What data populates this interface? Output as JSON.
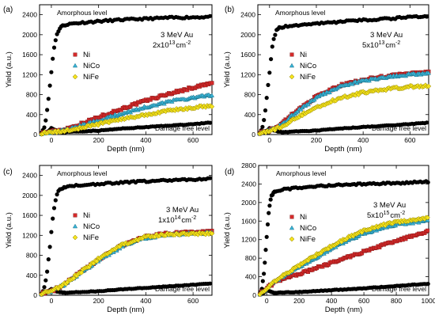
{
  "colors": {
    "ni": "#d42a2a",
    "nico": "#39b6d9",
    "nife": "#f5e31c",
    "ref": "#000000",
    "frame": "#000000"
  },
  "chart_data": [
    {
      "type": "scatter",
      "panel_label": "(a)",
      "beam": "3 MeV Au",
      "fluence_mantissa": "2x10",
      "fluence_exp": "13",
      "fluence_unit": "cm",
      "fluence_unit_exp": "-2",
      "xlabel": "Depth (nm)",
      "ylabel": "Yield (a.u.)",
      "xlim": [
        -50,
        680
      ],
      "ylim": [
        0,
        2600
      ],
      "xticks": [
        0,
        200,
        400,
        600
      ],
      "yticks": [
        0,
        400,
        800,
        1200,
        1600,
        2000,
        2400
      ],
      "annotations": {
        "amorphous": "Amorphous level",
        "damage_free": "Damage free level"
      },
      "amorphous": {
        "x": [
          -40,
          -30,
          -20,
          -10,
          0,
          10,
          20,
          30,
          40,
          60,
          100,
          200,
          300,
          400,
          500,
          600,
          680
        ],
        "y": [
          50,
          150,
          400,
          800,
          1250,
          1700,
          1950,
          2080,
          2160,
          2200,
          2230,
          2270,
          2300,
          2320,
          2340,
          2350,
          2360
        ]
      },
      "damage_free": {
        "x": [
          -40,
          -25,
          -10,
          0,
          20,
          50,
          100,
          200,
          300,
          400,
          500,
          600,
          680
        ],
        "y": [
          20,
          40,
          80,
          130,
          80,
          50,
          60,
          80,
          120,
          150,
          180,
          210,
          240
        ]
      },
      "series": [
        {
          "name": "Ni",
          "x": [
            -40,
            0,
            50,
            100,
            200,
            300,
            400,
            500,
            600,
            680
          ],
          "y": [
            30,
            60,
            100,
            170,
            350,
            520,
            680,
            820,
            940,
            1030
          ]
        },
        {
          "name": "NiCo",
          "x": [
            -40,
            0,
            50,
            100,
            200,
            300,
            400,
            500,
            600,
            680
          ],
          "y": [
            30,
            50,
            80,
            140,
            280,
            420,
            550,
            660,
            740,
            790
          ]
        },
        {
          "name": "NiFe",
          "x": [
            -40,
            0,
            50,
            100,
            200,
            300,
            400,
            500,
            600,
            680
          ],
          "y": [
            30,
            40,
            70,
            110,
            210,
            310,
            400,
            480,
            540,
            580
          ]
        }
      ]
    },
    {
      "type": "scatter",
      "panel_label": "(b)",
      "beam": "3 MeV Au",
      "fluence_mantissa": "5x10",
      "fluence_exp": "13",
      "fluence_unit": "cm",
      "fluence_unit_exp": "-2",
      "xlabel": "Depth (nm)",
      "ylabel": "Yield (a.u.)",
      "xlim": [
        -50,
        680
      ],
      "ylim": [
        0,
        2600
      ],
      "xticks": [
        0,
        200,
        400,
        600
      ],
      "yticks": [
        0,
        400,
        800,
        1200,
        1600,
        2000,
        2400
      ],
      "annotations": {
        "amorphous": "Amorphous level",
        "damage_free": "Damage free level"
      },
      "amorphous": {
        "x": [
          -40,
          -30,
          -20,
          -10,
          0,
          10,
          20,
          30,
          40,
          60,
          100,
          200,
          300,
          400,
          500,
          600,
          680
        ],
        "y": [
          50,
          150,
          400,
          800,
          1250,
          1700,
          1950,
          2080,
          2130,
          2160,
          2180,
          2220,
          2260,
          2290,
          2320,
          2350,
          2370
        ]
      },
      "damage_free": {
        "x": [
          -40,
          -25,
          -10,
          0,
          20,
          50,
          100,
          200,
          300,
          400,
          500,
          600,
          680
        ],
        "y": [
          20,
          40,
          80,
          130,
          80,
          50,
          60,
          80,
          120,
          150,
          180,
          210,
          240
        ]
      },
      "series": [
        {
          "name": "Ni",
          "x": [
            -40,
            0,
            50,
            100,
            200,
            300,
            400,
            500,
            600,
            680
          ],
          "y": [
            40,
            80,
            200,
            420,
            760,
            980,
            1100,
            1170,
            1220,
            1250
          ]
        },
        {
          "name": "NiCo",
          "x": [
            -40,
            0,
            50,
            100,
            200,
            300,
            400,
            500,
            600,
            680
          ],
          "y": [
            40,
            80,
            190,
            400,
            740,
            960,
            1080,
            1150,
            1200,
            1230
          ]
        },
        {
          "name": "NiFe",
          "x": [
            -40,
            0,
            50,
            100,
            200,
            300,
            400,
            500,
            600,
            680
          ],
          "y": [
            40,
            70,
            150,
            300,
            550,
            730,
            840,
            910,
            960,
            980
          ]
        }
      ]
    },
    {
      "type": "scatter",
      "panel_label": "(c)",
      "beam": "3 MeV Au",
      "fluence_mantissa": "1x10",
      "fluence_exp": "14",
      "fluence_unit": "cm",
      "fluence_unit_exp": "-2",
      "xlabel": "Depth (nm)",
      "ylabel": "Yield (a.u.)",
      "xlim": [
        -50,
        680
      ],
      "ylim": [
        0,
        2600
      ],
      "xticks": [
        0,
        200,
        400,
        600
      ],
      "yticks": [
        0,
        400,
        800,
        1200,
        1600,
        2000,
        2400
      ],
      "annotations": {
        "amorphous": "Amorphous level",
        "damage_free": "Damage free level"
      },
      "amorphous": {
        "x": [
          -40,
          -30,
          -20,
          -10,
          0,
          10,
          20,
          30,
          40,
          60,
          100,
          200,
          300,
          400,
          500,
          600,
          680
        ],
        "y": [
          50,
          150,
          400,
          800,
          1250,
          1700,
          1950,
          2080,
          2130,
          2170,
          2200,
          2230,
          2260,
          2280,
          2300,
          2320,
          2340
        ]
      },
      "damage_free": {
        "x": [
          -40,
          -25,
          -10,
          0,
          20,
          50,
          100,
          200,
          300,
          400,
          500,
          600,
          680
        ],
        "y": [
          20,
          40,
          80,
          130,
          80,
          50,
          60,
          80,
          120,
          150,
          180,
          210,
          240
        ]
      },
      "series": [
        {
          "name": "Ni",
          "x": [
            -40,
            0,
            50,
            100,
            200,
            300,
            400,
            500,
            600,
            680
          ],
          "y": [
            40,
            80,
            200,
            380,
            720,
            1000,
            1180,
            1240,
            1260,
            1270
          ]
        },
        {
          "name": "NiCo",
          "x": [
            -40,
            0,
            50,
            100,
            200,
            300,
            400,
            500,
            600,
            680
          ],
          "y": [
            40,
            80,
            200,
            370,
            700,
            980,
            1150,
            1210,
            1240,
            1250
          ]
        },
        {
          "name": "NiFe",
          "x": [
            -40,
            0,
            50,
            100,
            200,
            300,
            400,
            500,
            600,
            680
          ],
          "y": [
            40,
            80,
            200,
            380,
            730,
            1010,
            1180,
            1220,
            1230,
            1240
          ]
        }
      ]
    },
    {
      "type": "scatter",
      "panel_label": "(d)",
      "beam": "3 MeV Au",
      "fluence_mantissa": "5x10",
      "fluence_exp": "15",
      "fluence_unit": "cm",
      "fluence_unit_exp": "-2",
      "xlabel": "Depth (nm)",
      "ylabel": "Yield (a.u.)",
      "xlim": [
        -50,
        1000
      ],
      "ylim": [
        0,
        2800
      ],
      "xticks": [
        0,
        200,
        400,
        600,
        800,
        1000
      ],
      "yticks": [
        0,
        400,
        800,
        1200,
        1600,
        2000,
        2400,
        2800
      ],
      "annotations": {
        "amorphous": "Amorphous level",
        "damage_free": "Damage free level"
      },
      "amorphous": {
        "x": [
          -40,
          -30,
          -20,
          -10,
          0,
          10,
          20,
          30,
          40,
          60,
          100,
          200,
          300,
          400,
          600,
          800,
          1000
        ],
        "y": [
          50,
          150,
          400,
          800,
          1250,
          1700,
          2000,
          2150,
          2200,
          2250,
          2280,
          2320,
          2350,
          2370,
          2400,
          2420,
          2450
        ]
      },
      "damage_free": {
        "x": [
          -40,
          -25,
          -10,
          0,
          20,
          50,
          100,
          200,
          400,
          600,
          800,
          1000
        ],
        "y": [
          20,
          40,
          80,
          130,
          80,
          50,
          60,
          70,
          110,
          150,
          200,
          250
        ]
      },
      "series": [
        {
          "name": "Ni",
          "x": [
            -40,
            0,
            50,
            100,
            200,
            300,
            400,
            500,
            600,
            700,
            800,
            900,
            1000
          ],
          "y": [
            40,
            150,
            280,
            350,
            460,
            580,
            700,
            820,
            940,
            1060,
            1170,
            1280,
            1380
          ]
        },
        {
          "name": "NiCo",
          "x": [
            -40,
            0,
            50,
            100,
            200,
            300,
            400,
            500,
            600,
            700,
            800,
            900,
            1000
          ],
          "y": [
            40,
            150,
            300,
            400,
            600,
            800,
            1000,
            1180,
            1330,
            1440,
            1520,
            1570,
            1600
          ]
        },
        {
          "name": "NiFe",
          "x": [
            -40,
            0,
            50,
            100,
            200,
            300,
            400,
            500,
            600,
            700,
            800,
            900,
            1000
          ],
          "y": [
            40,
            150,
            300,
            420,
            640,
            860,
            1060,
            1240,
            1390,
            1500,
            1580,
            1630,
            1660
          ]
        }
      ]
    }
  ]
}
